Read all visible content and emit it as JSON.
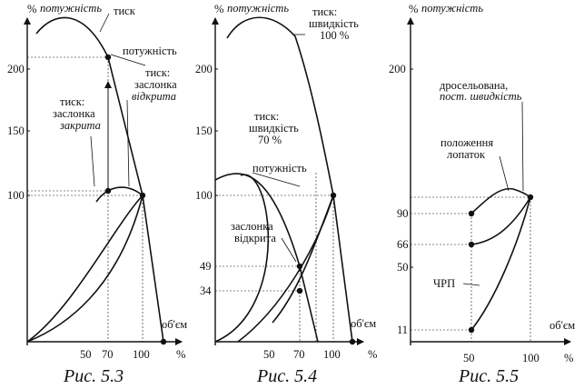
{
  "figures": [
    {
      "caption": "Рис. 5.3",
      "y_unit": "%",
      "y_title": "потужність",
      "x_unit": "%",
      "x_title": "об'єм",
      "y_ticks": [
        "200",
        "150",
        "100"
      ],
      "x_ticks": [
        "50",
        "70",
        "100"
      ],
      "labels": {
        "pressure": "тиск",
        "power": "потужність",
        "damper_open": [
          "тиск:",
          "заслонка",
          "відкрита"
        ],
        "damper_closed": [
          "тиск:",
          "заслонка",
          "закрита"
        ]
      }
    },
    {
      "caption": "Рис. 5.4",
      "y_unit": "%",
      "y_title": "потужність",
      "x_unit": "%",
      "x_title": "об'єм",
      "y_ticks": [
        "200",
        "150",
        "100",
        "49",
        "34"
      ],
      "x_ticks": [
        "50",
        "70",
        "100"
      ],
      "labels": {
        "pressure_100": [
          "тиск:",
          "швидкість",
          "100 %"
        ],
        "pressure_70": [
          "тиск:",
          "швидкість",
          "70 %"
        ],
        "power": "потужність",
        "damper_open": [
          "заслонка",
          "відкрита"
        ]
      }
    },
    {
      "caption": "Рис. 5.5",
      "y_unit": "%",
      "y_title": "потужність",
      "x_unit": "%",
      "x_title": "об'єм",
      "y_ticks": [
        "200",
        "90",
        "66",
        "50",
        "11"
      ],
      "x_ticks": [
        "50",
        "100"
      ],
      "labels": {
        "throttled": [
          "дросельована,",
          "пост. швидкість"
        ],
        "vanes": [
          "положення",
          "лопаток"
        ],
        "vfd": "ЧРП"
      }
    }
  ]
}
